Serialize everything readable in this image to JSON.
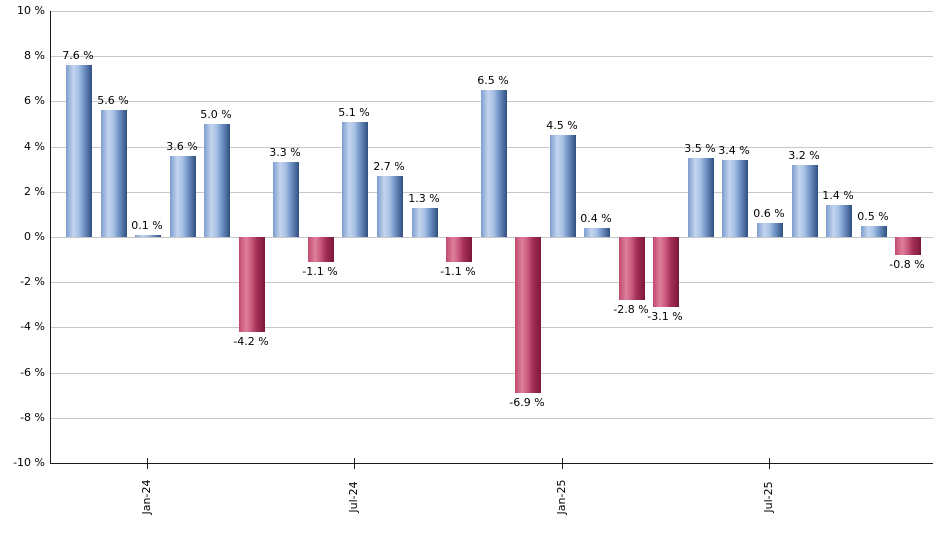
{
  "chart_data": {
    "type": "bar",
    "series_name": "monthly-return-percent",
    "values": [
      7.6,
      5.6,
      0.1,
      3.6,
      5.0,
      -4.2,
      3.3,
      -1.1,
      5.1,
      2.7,
      1.3,
      -1.1,
      6.5,
      -6.9,
      4.5,
      0.4,
      -2.8,
      -3.1,
      3.5,
      3.4,
      0.6,
      3.2,
      1.4,
      0.5,
      -0.8
    ],
    "value_labels": [
      "7.6 %",
      "5.6 %",
      "0.1 %",
      "3.6 %",
      "5.0 %",
      "-4.2 %",
      "3.3 %",
      "-1.1 %",
      "5.1 %",
      "2.7 %",
      "1.3 %",
      "-1.1 %",
      "6.5 %",
      "-6.9 %",
      "4.5 %",
      "0.4 %",
      "-2.8 %",
      "-3.1 %",
      "3.5 %",
      "3.4 %",
      "0.6 %",
      "3.2 %",
      "1.4 %",
      "0.5 %",
      "-0.8 %"
    ],
    "y_axis": {
      "min": -10,
      "max": 10,
      "step": 2,
      "unit": "%",
      "tick_labels": [
        "10 %",
        "8 %",
        "6 %",
        "4 %",
        "2 %",
        "0 %",
        "-2 %",
        "-4 %",
        "-6 %",
        "-8 %",
        "-10 %"
      ]
    },
    "x_axis": {
      "ticks": [
        {
          "bar_index": 2,
          "label": "Jan-24"
        },
        {
          "bar_index": 8,
          "label": "Jul-24"
        },
        {
          "bar_index": 14,
          "label": "Jan-25"
        },
        {
          "bar_index": 20,
          "label": "Jul-25"
        }
      ]
    },
    "legend": null,
    "grid": "horizontal",
    "colors": {
      "background": "#ffffff",
      "gridline": "#c8c8c8",
      "axis": "#1a1a1a",
      "label_text": "#000000",
      "positive_gradient_stops": [
        "#7d9dce",
        "#c3d4ee",
        "#a9c2e6",
        "#7396c8",
        "#2f4f80"
      ],
      "negative_gradient_stops": [
        "#c14a6e",
        "#de7f9b",
        "#ca5a7e",
        "#a43056",
        "#7c1638"
      ]
    }
  }
}
